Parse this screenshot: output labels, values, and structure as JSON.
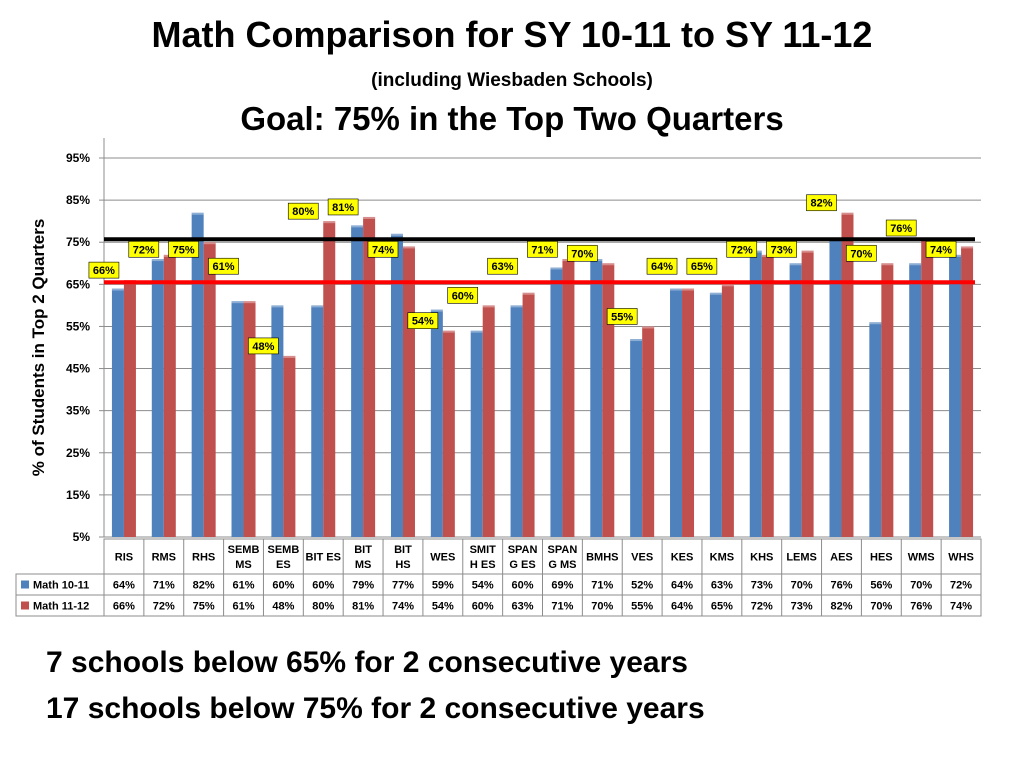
{
  "title": "Math Comparison for SY 10-11 to SY 11-12",
  "subtitle": "(including Wiesbaden Schools)",
  "goal_text": "Goal: 75% in the Top Two Quarters",
  "notes": [
    "7 schools below 65% for 2 consecutive years",
    "17 schools below 75% for 2 consecutive years"
  ],
  "chart_data": {
    "type": "bar",
    "ylabel": "% of Students in Top 2 Quarters",
    "ylim": [
      5,
      95
    ],
    "yticks": [
      "5%",
      "15%",
      "25%",
      "35%",
      "45%",
      "55%",
      "65%",
      "75%",
      "85%",
      "95%"
    ],
    "ytick_values": [
      5,
      15,
      25,
      35,
      45,
      55,
      65,
      75,
      85,
      95
    ],
    "grid": true,
    "legend": "data-table",
    "categories": [
      "RIS",
      "RMS",
      "RHS",
      "SEMB MS",
      "SEMB ES",
      "BIT ES",
      "BIT MS",
      "BIT HS",
      "WES",
      "SMIT H ES",
      "SPAN G ES",
      "SPAN G MS",
      "BMHS",
      "VES",
      "KES",
      "KMS",
      "KHS",
      "LEMS",
      "AES",
      "HES",
      "WMS",
      "WHS"
    ],
    "category_lines": [
      [
        "RIS"
      ],
      [
        "RMS"
      ],
      [
        "RHS"
      ],
      [
        "SEMB",
        "MS"
      ],
      [
        "SEMB",
        "ES"
      ],
      [
        "BIT ES"
      ],
      [
        "BIT",
        "MS"
      ],
      [
        "BIT",
        "HS"
      ],
      [
        "WES"
      ],
      [
        "SMIT",
        "H ES"
      ],
      [
        "SPAN",
        "G ES"
      ],
      [
        "SPAN",
        "G MS"
      ],
      [
        "BMHS"
      ],
      [
        "VES"
      ],
      [
        "KES"
      ],
      [
        "KMS"
      ],
      [
        "KHS"
      ],
      [
        "LEMS"
      ],
      [
        "AES"
      ],
      [
        "HES"
      ],
      [
        "WMS"
      ],
      [
        "WHS"
      ]
    ],
    "series": [
      {
        "name": "Math 10-11",
        "color": "#4F81BD",
        "values": [
          64,
          71,
          82,
          61,
          60,
          60,
          79,
          77,
          59,
          54,
          60,
          69,
          71,
          52,
          64,
          63,
          73,
          70,
          76,
          56,
          70,
          72
        ],
        "labels": [
          "64%",
          "71%",
          "82%",
          "61%",
          "60%",
          "60%",
          "79%",
          "77%",
          "59%",
          "54%",
          "60%",
          "69%",
          "71%",
          "52%",
          "64%",
          "63%",
          "73%",
          "70%",
          "76%",
          "56%",
          "70%",
          "72%"
        ]
      },
      {
        "name": "Math 11-12",
        "color": "#C0504D",
        "values": [
          66,
          72,
          75,
          61,
          48,
          80,
          81,
          74,
          54,
          60,
          63,
          71,
          70,
          55,
          64,
          65,
          72,
          73,
          82,
          70,
          76,
          74
        ],
        "labels": [
          "66%",
          "72%",
          "75%",
          "61%",
          "48%",
          "80%",
          "81%",
          "74%",
          "54%",
          "60%",
          "63%",
          "71%",
          "70%",
          "55%",
          "64%",
          "65%",
          "72%",
          "73%",
          "82%",
          "70%",
          "76%",
          "74%"
        ]
      }
    ],
    "reference_lines": [
      {
        "value": 75.7,
        "color": "#000000"
      },
      {
        "value": 65.5,
        "color": "#FF0000"
      }
    ],
    "data_label_bg": "#FFFF00"
  }
}
